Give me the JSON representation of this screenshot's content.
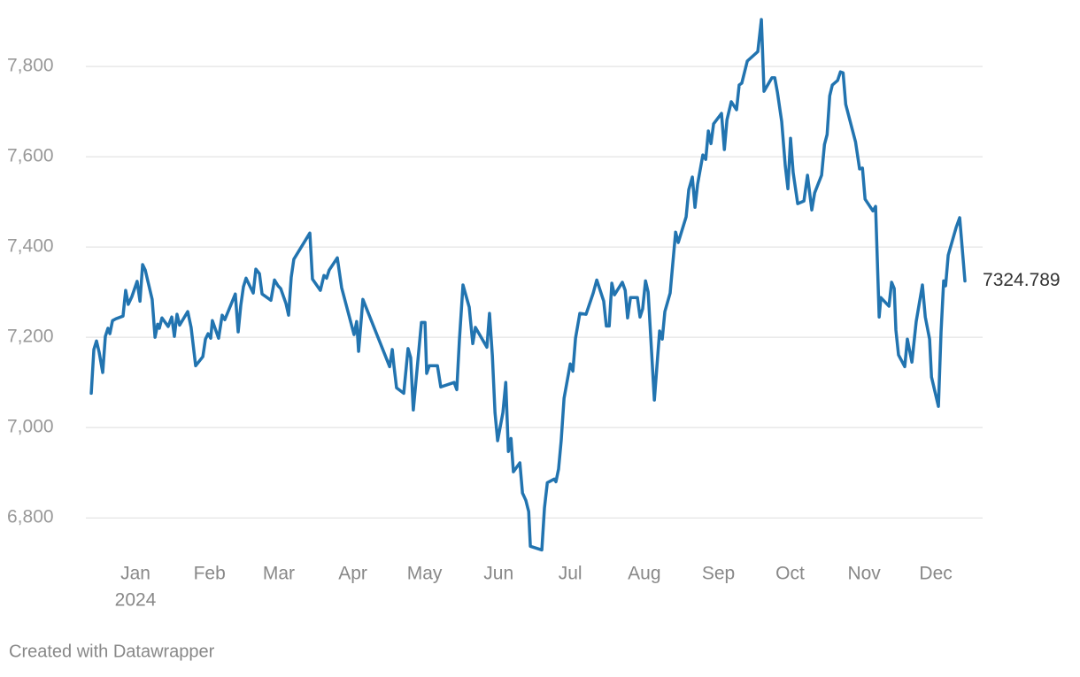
{
  "chart_data": {
    "type": "line",
    "x": [
      -18.5,
      -17.4,
      -16.3,
      -15.2,
      -13.7,
      -12.6,
      -11.5,
      -10.7,
      -9.6,
      -8.2,
      -5.2,
      -4.1,
      -3.0,
      -1.5,
      0.7,
      1.9,
      3.0,
      4.1,
      7.0,
      8.2,
      9.3,
      10.0,
      11.1,
      13.7,
      15.2,
      16.3,
      17.4,
      18.5,
      21.9,
      23.3,
      25.2,
      28.2,
      29.3,
      30.4,
      31.5,
      32.2,
      34.8,
      36.3,
      37.4,
      41.8,
      43.0,
      44.1,
      45.2,
      46.3,
      49.3,
      50.4,
      51.9,
      53.0,
      56.7,
      58.2,
      59.7,
      60.8,
      63.0,
      64.1,
      65.2,
      66.3,
      73.0,
      74.1,
      77.4,
      78.9,
      80.0,
      81.1,
      84.5,
      86.3,
      91.5,
      92.6,
      93.4,
      95.2,
      106.4,
      107.5,
      108.2,
      109.3,
      112.3,
      114.1,
      115.2,
      116.3,
      119.7,
      121.2,
      121.9,
      123.0,
      126.4,
      127.8,
      133.4,
      134.5,
      135.6,
      137.1,
      139.7,
      141.2,
      142.3,
      147.1,
      148.2,
      149.4,
      150.5,
      151.6,
      153.8,
      155.0,
      156.1,
      157.2,
      158.2,
      160.9,
      162.0,
      163.4,
      164.6,
      165.3,
      170.1,
      171.2,
      172.4,
      175.3,
      176.0,
      177.1,
      178.2,
      179.4,
      182.0,
      183.1,
      184.2,
      186.0,
      188.6,
      191.6,
      193.1,
      196.0,
      197.1,
      198.3,
      199.4,
      200.5,
      203.8,
      205.0,
      206.0,
      207.2,
      210.1,
      211.2,
      212.3,
      213.5,
      214.6,
      217.2,
      219.4,
      220.5,
      221.6,
      223.8,
      226.1,
      227.2,
      230.5,
      231.6,
      233.1,
      234.2,
      235.3,
      237.5,
      238.7,
      239.8,
      240.9,
      242.0,
      245.3,
      246.5,
      247.6,
      249.4,
      251.6,
      252.7,
      253.8,
      256.1,
      260.5,
      262.0,
      263.1,
      266.4,
      267.6,
      268.7,
      270.5,
      272.0,
      273.1,
      274.2,
      275.3,
      277.2,
      279.8,
      281.3,
      283.1,
      284.3,
      287.2,
      288.4,
      289.5,
      290.6,
      291.7,
      293.9,
      295.1,
      296.2,
      297.3,
      301.4,
      303.1,
      304.3,
      305.4,
      308.7,
      309.8,
      311.3,
      312.0,
      315.4,
      316.5,
      317.6,
      318.3,
      319.4,
      322.0,
      323.1,
      325.0,
      326.8,
      329.4,
      330.6,
      332.4,
      333.2,
      336.1,
      337.2,
      338.3,
      339.1,
      340.2,
      343.5,
      345.0,
      347.2
    ],
    "values": [
      7076,
      7173,
      7192,
      7167,
      7122,
      7202,
      7220,
      7208,
      7237,
      7241,
      7247,
      7304,
      7273,
      7290,
      7324,
      7280,
      7361,
      7349,
      7284,
      7200,
      7229,
      7220,
      7243,
      7224,
      7245,
      7202,
      7251,
      7227,
      7257,
      7222,
      7137,
      7157,
      7196,
      7208,
      7198,
      7237,
      7198,
      7249,
      7239,
      7296,
      7212,
      7271,
      7312,
      7331,
      7298,
      7351,
      7341,
      7296,
      7282,
      7327,
      7314,
      7308,
      7275,
      7249,
      7333,
      7373,
      7431,
      7329,
      7304,
      7337,
      7331,
      7349,
      7376,
      7310,
      7206,
      7235,
      7169,
      7284,
      7135,
      7173,
      7137,
      7088,
      7076,
      7175,
      7155,
      7039,
      7233,
      7233,
      7120,
      7137,
      7137,
      7090,
      7100,
      7084,
      7194,
      7316,
      7267,
      7186,
      7222,
      7178,
      7253,
      7159,
      7033,
      6971,
      7033,
      7100,
      6947,
      6976,
      6902,
      6922,
      6855,
      6839,
      6814,
      6737,
      6729,
      6822,
      6878,
      6886,
      6880,
      6908,
      6971,
      7065,
      7141,
      7125,
      7198,
      7253,
      7251,
      7298,
      7327,
      7280,
      7225,
      7225,
      7320,
      7294,
      7322,
      7304,
      7243,
      7288,
      7288,
      7245,
      7263,
      7325,
      7300,
      7061,
      7214,
      7196,
      7257,
      7298,
      7433,
      7410,
      7467,
      7527,
      7555,
      7488,
      7539,
      7604,
      7594,
      7657,
      7629,
      7673,
      7696,
      7616,
      7682,
      7722,
      7704,
      7759,
      7763,
      7812,
      7833,
      7904,
      7745,
      7775,
      7775,
      7743,
      7678,
      7580,
      7529,
      7641,
      7565,
      7496,
      7502,
      7559,
      7482,
      7520,
      7559,
      7627,
      7649,
      7735,
      7759,
      7769,
      7788,
      7786,
      7716,
      7633,
      7573,
      7575,
      7506,
      7480,
      7490,
      7245,
      7288,
      7269,
      7322,
      7308,
      7216,
      7161,
      7135,
      7196,
      7145,
      7235,
      7316,
      7245,
      7196,
      7112,
      7047,
      7212,
      7325,
      7314,
      7382,
      7443,
      7465,
      7324.789
    ],
    "color": "#2274b0",
    "xlim": [
      -20.75,
      354.6
    ],
    "xticks": [
      {
        "value": 0,
        "label": "Jan",
        "sublabel": "2024"
      },
      {
        "value": 31,
        "label": "Feb"
      },
      {
        "value": 60,
        "label": "Mar"
      },
      {
        "value": 91,
        "label": "Apr"
      },
      {
        "value": 121,
        "label": "May"
      },
      {
        "value": 152,
        "label": "Jun"
      },
      {
        "value": 182,
        "label": "Jul"
      },
      {
        "value": 213,
        "label": "Aug"
      },
      {
        "value": 244,
        "label": "Sep"
      },
      {
        "value": 274,
        "label": "Oct"
      },
      {
        "value": 305,
        "label": "Nov"
      },
      {
        "value": 335,
        "label": "Dec"
      }
    ],
    "ylim": [
      6720,
      7910
    ],
    "yticks": [
      {
        "value": 6800,
        "label": "6,800"
      },
      {
        "value": 7000,
        "label": "7,000"
      },
      {
        "value": 7200,
        "label": "7,200"
      },
      {
        "value": 7400,
        "label": "7,400"
      },
      {
        "value": 7600,
        "label": "7,600"
      },
      {
        "value": 7800,
        "label": "7,800"
      }
    ],
    "grid": true,
    "credit": "Created with Datawrapper"
  }
}
